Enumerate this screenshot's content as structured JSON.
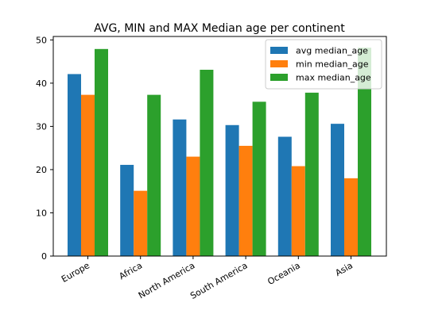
{
  "chart_data": {
    "type": "bar",
    "title": "AVG, MIN and MAX Median age per continent",
    "xlabel": "",
    "ylabel": "",
    "categories": [
      "Europe",
      "Africa",
      "North America",
      "South America",
      "Oceania",
      "Asia"
    ],
    "series": [
      {
        "name": "avg median_age",
        "color": "#1f77b4",
        "values": [
          42.1,
          21.1,
          31.6,
          30.3,
          27.6,
          30.6
        ]
      },
      {
        "name": "min median_age",
        "color": "#ff7f0e",
        "values": [
          37.3,
          15.1,
          23.0,
          25.5,
          20.8,
          18.0
        ]
      },
      {
        "name": "max median_age",
        "color": "#2ca02c",
        "values": [
          47.9,
          37.3,
          43.1,
          35.7,
          37.8,
          48.2
        ]
      }
    ],
    "ylim": [
      0,
      50
    ],
    "yticks": [
      "0",
      "10",
      "20",
      "30",
      "40",
      "50"
    ],
    "grid": false,
    "legend_position": "top-right"
  }
}
